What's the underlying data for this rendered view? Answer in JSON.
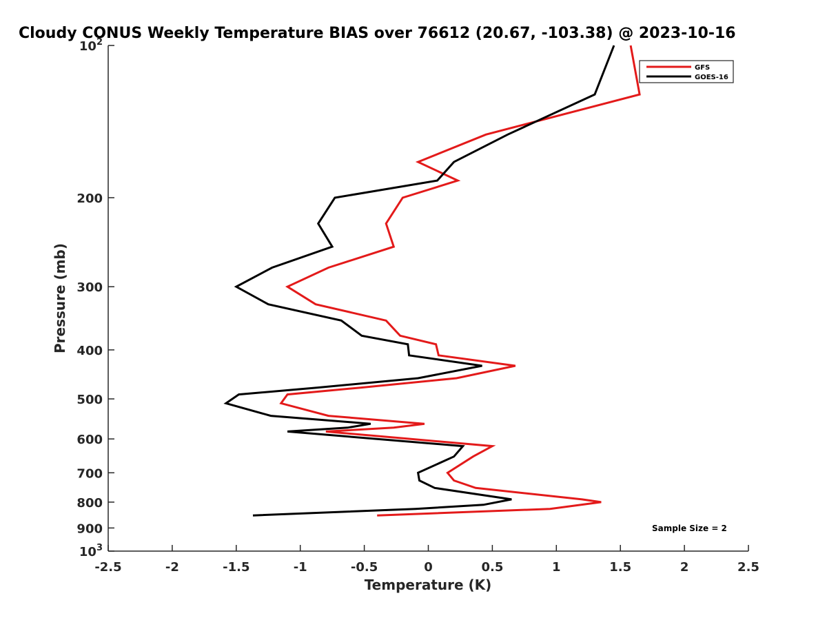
{
  "chart_data": {
    "type": "line",
    "title": "Cloudy CONUS Weekly Temperature BIAS over 76612 (20.67, -103.38) @ 2023-10-16",
    "xlabel": "Temperature (K)",
    "ylabel": "Pressure (mb)",
    "xlim": [
      -2.5,
      2.5
    ],
    "ylim": [
      100,
      1000
    ],
    "y_scale": "log",
    "y_reversed": true,
    "grid": false,
    "x_ticks": [
      -2.5,
      -2,
      -1.5,
      -1,
      -0.5,
      0,
      0.5,
      1,
      1.5,
      2,
      2.5
    ],
    "x_tick_labels": [
      "-2.5",
      "-2",
      "-1.5",
      "-1",
      "-0.5",
      "0",
      "0.5",
      "1",
      "1.5",
      "2",
      "2.5"
    ],
    "y_ticks": [
      100,
      200,
      300,
      400,
      500,
      600,
      700,
      800,
      900,
      1000
    ],
    "y_tick_labels": [
      {
        "base": "10",
        "exp": "2"
      },
      {
        "base": "200",
        "exp": ""
      },
      {
        "base": "300",
        "exp": ""
      },
      {
        "base": "400",
        "exp": ""
      },
      {
        "base": "500",
        "exp": ""
      },
      {
        "base": "600",
        "exp": ""
      },
      {
        "base": "700",
        "exp": ""
      },
      {
        "base": "800",
        "exp": ""
      },
      {
        "base": "900",
        "exp": ""
      },
      {
        "base": "10",
        "exp": "3"
      }
    ],
    "legend": {
      "placement": "top-right",
      "entries": [
        "GFS",
        "GOES-16"
      ]
    },
    "annotation": "Sample Size = 2",
    "series": [
      {
        "name": "GFS",
        "color": "#e31a1a",
        "points": [
          {
            "x": 1.58,
            "p": 100
          },
          {
            "x": 1.65,
            "p": 125
          },
          {
            "x": 0.45,
            "p": 150
          },
          {
            "x": -0.08,
            "p": 170
          },
          {
            "x": 0.23,
            "p": 185
          },
          {
            "x": -0.2,
            "p": 200
          },
          {
            "x": -0.33,
            "p": 225
          },
          {
            "x": -0.27,
            "p": 250
          },
          {
            "x": -0.78,
            "p": 275
          },
          {
            "x": -1.1,
            "p": 300
          },
          {
            "x": -0.88,
            "p": 325
          },
          {
            "x": -0.33,
            "p": 350
          },
          {
            "x": -0.22,
            "p": 375
          },
          {
            "x": 0.06,
            "p": 390
          },
          {
            "x": 0.08,
            "p": 410
          },
          {
            "x": 0.68,
            "p": 430
          },
          {
            "x": 0.22,
            "p": 455
          },
          {
            "x": -0.53,
            "p": 475
          },
          {
            "x": -1.1,
            "p": 490
          },
          {
            "x": -1.15,
            "p": 510
          },
          {
            "x": -0.78,
            "p": 540
          },
          {
            "x": -0.03,
            "p": 560
          },
          {
            "x": -0.27,
            "p": 570
          },
          {
            "x": -0.8,
            "p": 580
          },
          {
            "x": 0.5,
            "p": 620
          },
          {
            "x": 0.35,
            "p": 650
          },
          {
            "x": 0.15,
            "p": 700
          },
          {
            "x": 0.2,
            "p": 725
          },
          {
            "x": 0.37,
            "p": 750
          },
          {
            "x": 1.2,
            "p": 790
          },
          {
            "x": 1.35,
            "p": 800
          },
          {
            "x": 0.95,
            "p": 825
          },
          {
            "x": -0.4,
            "p": 850
          }
        ]
      },
      {
        "name": "GOES-16",
        "color": "#000000",
        "points": [
          {
            "x": 1.45,
            "p": 100
          },
          {
            "x": 1.3,
            "p": 125
          },
          {
            "x": 0.62,
            "p": 150
          },
          {
            "x": 0.2,
            "p": 170
          },
          {
            "x": 0.07,
            "p": 185
          },
          {
            "x": -0.73,
            "p": 200
          },
          {
            "x": -0.86,
            "p": 225
          },
          {
            "x": -0.75,
            "p": 250
          },
          {
            "x": -1.22,
            "p": 275
          },
          {
            "x": -1.5,
            "p": 300
          },
          {
            "x": -1.25,
            "p": 325
          },
          {
            "x": -0.68,
            "p": 350
          },
          {
            "x": -0.52,
            "p": 375
          },
          {
            "x": -0.16,
            "p": 390
          },
          {
            "x": -0.15,
            "p": 410
          },
          {
            "x": 0.42,
            "p": 430
          },
          {
            "x": -0.08,
            "p": 455
          },
          {
            "x": -0.87,
            "p": 475
          },
          {
            "x": -1.48,
            "p": 490
          },
          {
            "x": -1.58,
            "p": 510
          },
          {
            "x": -1.23,
            "p": 540
          },
          {
            "x": -0.45,
            "p": 560
          },
          {
            "x": -0.63,
            "p": 570
          },
          {
            "x": -1.1,
            "p": 580
          },
          {
            "x": 0.27,
            "p": 620
          },
          {
            "x": 0.2,
            "p": 650
          },
          {
            "x": -0.08,
            "p": 700
          },
          {
            "x": -0.07,
            "p": 725
          },
          {
            "x": 0.05,
            "p": 750
          },
          {
            "x": 0.65,
            "p": 790
          },
          {
            "x": 0.43,
            "p": 810
          },
          {
            "x": -0.1,
            "p": 825
          },
          {
            "x": -1.37,
            "p": 850
          }
        ]
      }
    ]
  }
}
